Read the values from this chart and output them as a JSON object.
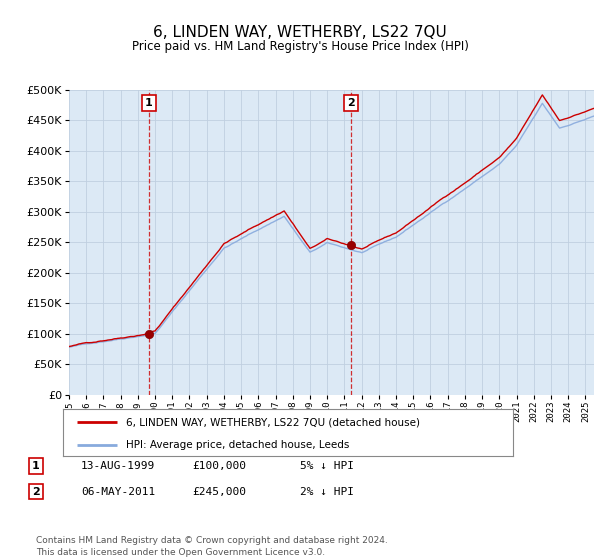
{
  "title": "6, LINDEN WAY, WETHERBY, LS22 7QU",
  "subtitle": "Price paid vs. HM Land Registry's House Price Index (HPI)",
  "background_color": "white",
  "plot_bg_color": "#dce9f5",
  "legend_line1": "6, LINDEN WAY, WETHERBY, LS22 7QU (detached house)",
  "legend_line2": "HPI: Average price, detached house, Leeds",
  "footnote": "Contains HM Land Registry data © Crown copyright and database right 2024.\nThis data is licensed under the Open Government Licence v3.0.",
  "sale1_label": "1",
  "sale1_date": "13-AUG-1999",
  "sale1_price": "£100,000",
  "sale1_hpi": "5% ↓ HPI",
  "sale2_label": "2",
  "sale2_date": "06-MAY-2011",
  "sale2_price": "£245,000",
  "sale2_hpi": "2% ↓ HPI",
  "ylim": [
    0,
    500000
  ],
  "yticks": [
    0,
    50000,
    100000,
    150000,
    200000,
    250000,
    300000,
    350000,
    400000,
    450000,
    500000
  ],
  "sale1_year": 1999.62,
  "sale2_year": 2011.37,
  "hpi_color": "#88aadd",
  "price_color": "#cc0000",
  "vline_color": "#cc0000",
  "marker_color": "#990000",
  "grid_color": "#c0cfe0",
  "xmin": 1995.0,
  "xmax": 2025.5
}
